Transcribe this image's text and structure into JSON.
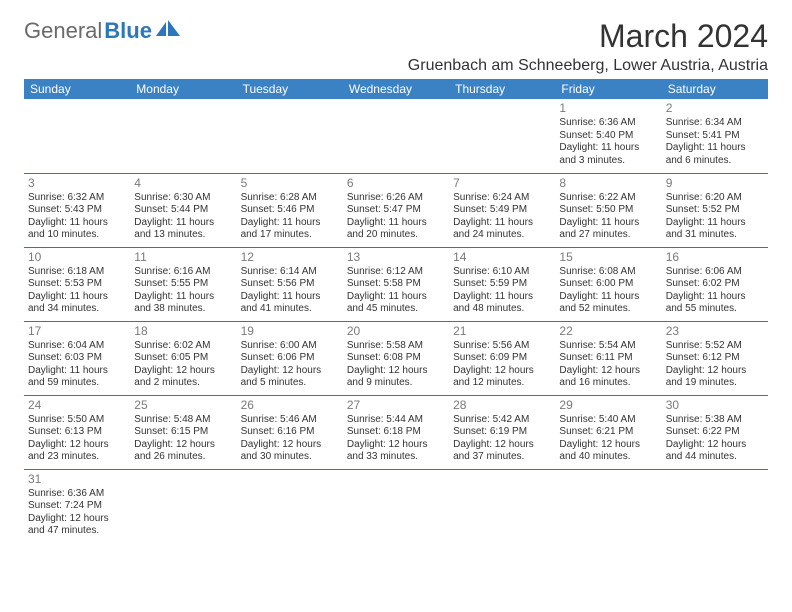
{
  "logo": {
    "text_gray": "General",
    "text_blue": "Blue"
  },
  "title": "March 2024",
  "location": "Gruenbach am Schneeberg, Lower Austria, Austria",
  "dow": [
    "Sunday",
    "Monday",
    "Tuesday",
    "Wednesday",
    "Thursday",
    "Friday",
    "Saturday"
  ],
  "colors": {
    "header_bg": "#3b82c4",
    "header_fg": "#ffffff",
    "rule": "#2b77bd",
    "logo_gray": "#6a6a6a",
    "logo_blue": "#2b77bd",
    "daynum": "#7a7a7a",
    "text": "#333333",
    "bg": "#ffffff"
  },
  "layout": {
    "font_family": "Arial",
    "title_fontsize": 32,
    "location_fontsize": 16,
    "th_fontsize": 12,
    "cell_fontsize": 10,
    "daynum_fontsize": 12,
    "cols": 7,
    "rows": 6
  },
  "weeks": [
    [
      null,
      null,
      null,
      null,
      null,
      {
        "d": "1",
        "sunrise": "Sunrise: 6:36 AM",
        "sunset": "Sunset: 5:40 PM",
        "day1": "Daylight: 11 hours",
        "day2": "and 3 minutes."
      },
      {
        "d": "2",
        "sunrise": "Sunrise: 6:34 AM",
        "sunset": "Sunset: 5:41 PM",
        "day1": "Daylight: 11 hours",
        "day2": "and 6 minutes."
      }
    ],
    [
      {
        "d": "3",
        "sunrise": "Sunrise: 6:32 AM",
        "sunset": "Sunset: 5:43 PM",
        "day1": "Daylight: 11 hours",
        "day2": "and 10 minutes."
      },
      {
        "d": "4",
        "sunrise": "Sunrise: 6:30 AM",
        "sunset": "Sunset: 5:44 PM",
        "day1": "Daylight: 11 hours",
        "day2": "and 13 minutes."
      },
      {
        "d": "5",
        "sunrise": "Sunrise: 6:28 AM",
        "sunset": "Sunset: 5:46 PM",
        "day1": "Daylight: 11 hours",
        "day2": "and 17 minutes."
      },
      {
        "d": "6",
        "sunrise": "Sunrise: 6:26 AM",
        "sunset": "Sunset: 5:47 PM",
        "day1": "Daylight: 11 hours",
        "day2": "and 20 minutes."
      },
      {
        "d": "7",
        "sunrise": "Sunrise: 6:24 AM",
        "sunset": "Sunset: 5:49 PM",
        "day1": "Daylight: 11 hours",
        "day2": "and 24 minutes."
      },
      {
        "d": "8",
        "sunrise": "Sunrise: 6:22 AM",
        "sunset": "Sunset: 5:50 PM",
        "day1": "Daylight: 11 hours",
        "day2": "and 27 minutes."
      },
      {
        "d": "9",
        "sunrise": "Sunrise: 6:20 AM",
        "sunset": "Sunset: 5:52 PM",
        "day1": "Daylight: 11 hours",
        "day2": "and 31 minutes."
      }
    ],
    [
      {
        "d": "10",
        "sunrise": "Sunrise: 6:18 AM",
        "sunset": "Sunset: 5:53 PM",
        "day1": "Daylight: 11 hours",
        "day2": "and 34 minutes."
      },
      {
        "d": "11",
        "sunrise": "Sunrise: 6:16 AM",
        "sunset": "Sunset: 5:55 PM",
        "day1": "Daylight: 11 hours",
        "day2": "and 38 minutes."
      },
      {
        "d": "12",
        "sunrise": "Sunrise: 6:14 AM",
        "sunset": "Sunset: 5:56 PM",
        "day1": "Daylight: 11 hours",
        "day2": "and 41 minutes."
      },
      {
        "d": "13",
        "sunrise": "Sunrise: 6:12 AM",
        "sunset": "Sunset: 5:58 PM",
        "day1": "Daylight: 11 hours",
        "day2": "and 45 minutes."
      },
      {
        "d": "14",
        "sunrise": "Sunrise: 6:10 AM",
        "sunset": "Sunset: 5:59 PM",
        "day1": "Daylight: 11 hours",
        "day2": "and 48 minutes."
      },
      {
        "d": "15",
        "sunrise": "Sunrise: 6:08 AM",
        "sunset": "Sunset: 6:00 PM",
        "day1": "Daylight: 11 hours",
        "day2": "and 52 minutes."
      },
      {
        "d": "16",
        "sunrise": "Sunrise: 6:06 AM",
        "sunset": "Sunset: 6:02 PM",
        "day1": "Daylight: 11 hours",
        "day2": "and 55 minutes."
      }
    ],
    [
      {
        "d": "17",
        "sunrise": "Sunrise: 6:04 AM",
        "sunset": "Sunset: 6:03 PM",
        "day1": "Daylight: 11 hours",
        "day2": "and 59 minutes."
      },
      {
        "d": "18",
        "sunrise": "Sunrise: 6:02 AM",
        "sunset": "Sunset: 6:05 PM",
        "day1": "Daylight: 12 hours",
        "day2": "and 2 minutes."
      },
      {
        "d": "19",
        "sunrise": "Sunrise: 6:00 AM",
        "sunset": "Sunset: 6:06 PM",
        "day1": "Daylight: 12 hours",
        "day2": "and 5 minutes."
      },
      {
        "d": "20",
        "sunrise": "Sunrise: 5:58 AM",
        "sunset": "Sunset: 6:08 PM",
        "day1": "Daylight: 12 hours",
        "day2": "and 9 minutes."
      },
      {
        "d": "21",
        "sunrise": "Sunrise: 5:56 AM",
        "sunset": "Sunset: 6:09 PM",
        "day1": "Daylight: 12 hours",
        "day2": "and 12 minutes."
      },
      {
        "d": "22",
        "sunrise": "Sunrise: 5:54 AM",
        "sunset": "Sunset: 6:11 PM",
        "day1": "Daylight: 12 hours",
        "day2": "and 16 minutes."
      },
      {
        "d": "23",
        "sunrise": "Sunrise: 5:52 AM",
        "sunset": "Sunset: 6:12 PM",
        "day1": "Daylight: 12 hours",
        "day2": "and 19 minutes."
      }
    ],
    [
      {
        "d": "24",
        "sunrise": "Sunrise: 5:50 AM",
        "sunset": "Sunset: 6:13 PM",
        "day1": "Daylight: 12 hours",
        "day2": "and 23 minutes."
      },
      {
        "d": "25",
        "sunrise": "Sunrise: 5:48 AM",
        "sunset": "Sunset: 6:15 PM",
        "day1": "Daylight: 12 hours",
        "day2": "and 26 minutes."
      },
      {
        "d": "26",
        "sunrise": "Sunrise: 5:46 AM",
        "sunset": "Sunset: 6:16 PM",
        "day1": "Daylight: 12 hours",
        "day2": "and 30 minutes."
      },
      {
        "d": "27",
        "sunrise": "Sunrise: 5:44 AM",
        "sunset": "Sunset: 6:18 PM",
        "day1": "Daylight: 12 hours",
        "day2": "and 33 minutes."
      },
      {
        "d": "28",
        "sunrise": "Sunrise: 5:42 AM",
        "sunset": "Sunset: 6:19 PM",
        "day1": "Daylight: 12 hours",
        "day2": "and 37 minutes."
      },
      {
        "d": "29",
        "sunrise": "Sunrise: 5:40 AM",
        "sunset": "Sunset: 6:21 PM",
        "day1": "Daylight: 12 hours",
        "day2": "and 40 minutes."
      },
      {
        "d": "30",
        "sunrise": "Sunrise: 5:38 AM",
        "sunset": "Sunset: 6:22 PM",
        "day1": "Daylight: 12 hours",
        "day2": "and 44 minutes."
      }
    ],
    [
      {
        "d": "31",
        "sunrise": "Sunrise: 6:36 AM",
        "sunset": "Sunset: 7:24 PM",
        "day1": "Daylight: 12 hours",
        "day2": "and 47 minutes."
      },
      null,
      null,
      null,
      null,
      null,
      null
    ]
  ]
}
